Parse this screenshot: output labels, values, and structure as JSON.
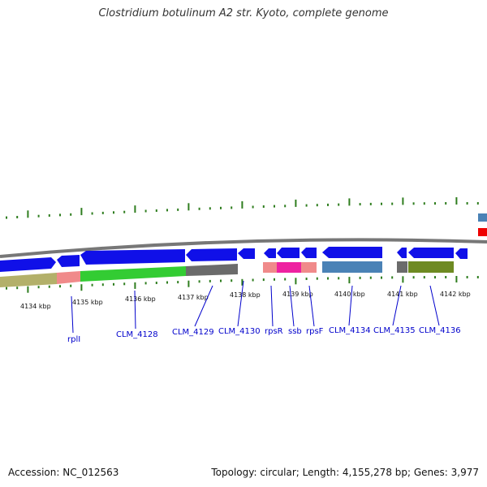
{
  "title": "Clostridium botulinum A2 str. Kyoto, complete genome",
  "footer": {
    "accession": "Accession: NC_012563",
    "summary": "Topology: circular; Length: 4,155,278 bp; Genes: 3,977"
  },
  "colors": {
    "gene_blue": "#1010e8",
    "backbone": "#777777",
    "tick_green": "#2e7d1e",
    "label_blue": "#0000cc",
    "khaki": "#b3b06a",
    "salmon": "#f08a8a",
    "green": "#33cc33",
    "gray": "#6b6b6b",
    "magenta": "#ee22a0",
    "steelblue": "#4a82b6",
    "olive": "#6e8a22",
    "red": "#ee0000"
  },
  "kbp_labels": [
    "4134 kbp",
    "4135 kbp",
    "4136 kbp",
    "4137 kbp",
    "4138 kbp",
    "4139 kbp",
    "4140 kbp",
    "4141 kbp",
    "4142 kbp"
  ],
  "gene_labels": [
    "rplI",
    "CLM_4128",
    "CLM_4129",
    "CLM_4130",
    "rpsR",
    "ssb",
    "rpsF",
    "CLM_4134",
    "CLM_4135",
    "CLM_4136"
  ]
}
